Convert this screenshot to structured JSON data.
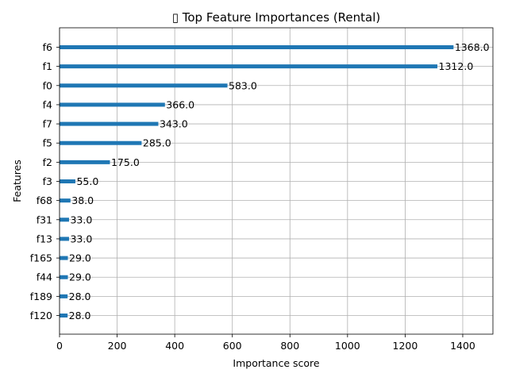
{
  "chart_data": {
    "type": "bar",
    "orientation": "horizontal",
    "title": "▯ Top Feature Importances (Rental)",
    "xlabel": "Importance score",
    "ylabel": "Features",
    "categories": [
      "f6",
      "f1",
      "f0",
      "f4",
      "f7",
      "f5",
      "f2",
      "f3",
      "f68",
      "f31",
      "f13",
      "f165",
      "f44",
      "f189",
      "f120"
    ],
    "values": [
      1368.0,
      1312.0,
      583.0,
      366.0,
      343.0,
      285.0,
      175.0,
      55.0,
      38.0,
      33.0,
      33.0,
      29.0,
      29.0,
      28.0,
      28.0
    ],
    "value_labels": [
      "1368.0",
      "1312.0",
      "583.0",
      "366.0",
      "343.0",
      "285.0",
      "175.0",
      "55.0",
      "38.0",
      "33.0",
      "33.0",
      "29.0",
      "29.0",
      "28.0",
      "28.0"
    ],
    "xlim": [
      0,
      1504.8
    ],
    "xticks": [
      0,
      200,
      400,
      600,
      800,
      1000,
      1200,
      1400
    ],
    "grid": true,
    "bar_color": "#1f77b4"
  }
}
